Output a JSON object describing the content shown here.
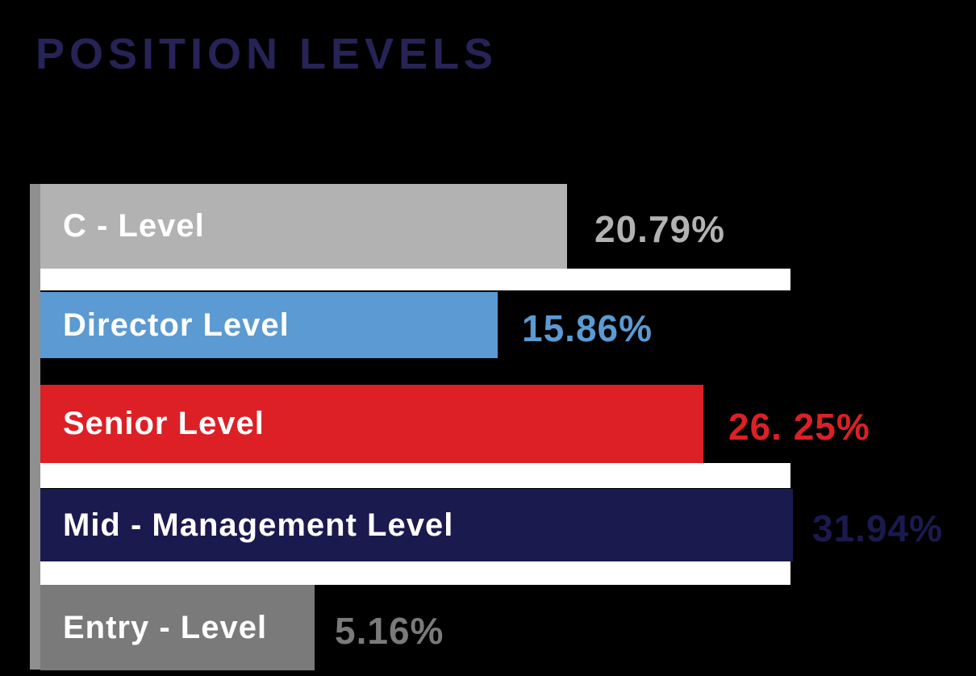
{
  "title": "POSITION LEVELS",
  "colors": {
    "background": "#000000",
    "title": "#262357",
    "axis_strip": "#8f8f8f",
    "separator_band": "#ffffff",
    "bar_text": "#ffffff"
  },
  "chart_data": {
    "type": "bar",
    "orientation": "horizontal",
    "title": "POSITION LEVELS",
    "categories": [
      "C - Level",
      "Director Level",
      "Senior Level",
      "Mid - Management Level",
      "Entry - Level"
    ],
    "values": [
      20.79,
      15.86,
      26.25,
      31.94,
      5.16
    ],
    "value_labels": [
      "20.79%",
      "15.86%",
      "26. 25%",
      "31.94%",
      "5.16%"
    ],
    "bar_colors": [
      "#b2b2b2",
      "#5b9ad2",
      "#dc2026",
      "#1a1a4e",
      "#7a7a7a"
    ],
    "value_label_colors": [
      "#b2b2b2",
      "#5b9ad2",
      "#dc2026",
      "#1a1a4e",
      "#7a7a7a"
    ],
    "xlabel": "",
    "ylabel": "",
    "grid": false,
    "legend": false,
    "value_label_position": "right-of-bar",
    "category_label_position": "inside-bar-left"
  }
}
